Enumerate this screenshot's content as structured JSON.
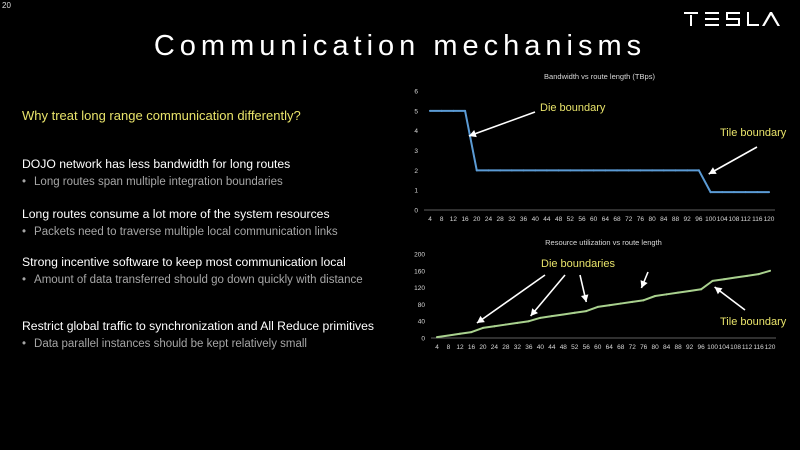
{
  "slide_number": "20",
  "brand": {
    "logo_text": "TESLA",
    "logo_icon": "tesla-wordmark-icon"
  },
  "title": "Communication mechanisms",
  "question": "Why treat long range communication differently?",
  "points": [
    {
      "heading": "DOJO network has less bandwidth for long routes",
      "sub": "Long routes span multiple integration boundaries"
    },
    {
      "heading": "Long routes consume a lot more of the system resources",
      "sub": "Packets need to traverse multiple local communication links"
    },
    {
      "heading": "Strong incentive software to keep most communication local",
      "sub": "Amount of data transferred should go down quickly with distance"
    },
    {
      "heading": "Restrict global traffic to synchronization and All Reduce primitives",
      "sub": "Data parallel instances should be kept relatively small"
    }
  ],
  "colors": {
    "bandwidth_line": "#5b9bd5",
    "utilization_line": "#a9d18e",
    "annotation_text": "#e8e36a",
    "axis": "#7f7f7f"
  },
  "chart_data": [
    {
      "type": "line",
      "title": "Bandwidth vs route length (TBps)",
      "x": [
        4,
        8,
        12,
        16,
        20,
        24,
        28,
        32,
        36,
        40,
        44,
        48,
        52,
        56,
        60,
        64,
        68,
        72,
        76,
        80,
        84,
        88,
        92,
        96,
        100,
        104,
        108,
        112,
        116,
        120
      ],
      "series": [
        {
          "values": [
            5,
            5,
            5,
            5,
            2,
            2,
            2,
            2,
            2,
            2,
            2,
            2,
            2,
            2,
            2,
            2,
            2,
            2,
            2,
            2,
            2,
            2,
            2,
            2,
            0.9,
            0.9,
            0.9,
            0.9,
            0.9,
            0.9
          ]
        }
      ],
      "ylim": [
        0,
        6
      ],
      "yticks": [
        0,
        1,
        2,
        3,
        4,
        5,
        6
      ],
      "xticks": [
        "4",
        "8",
        "12",
        "16",
        "20",
        "24",
        "28",
        "32",
        "36",
        "40",
        "44",
        "48",
        "52",
        "56",
        "60",
        "64",
        "68",
        "72",
        "76",
        "80",
        "84",
        "88",
        "92",
        "96",
        "100",
        "104",
        "108",
        "112",
        "116",
        "120"
      ],
      "grid": false,
      "annotations": [
        {
          "text": "Die boundary",
          "points_to_x": [
            18
          ]
        },
        {
          "text": "Tile boundary",
          "points_to_x": [
            98
          ]
        }
      ]
    },
    {
      "type": "line",
      "title": "Resource utilization vs route length",
      "x": [
        4,
        8,
        12,
        16,
        20,
        24,
        28,
        32,
        36,
        40,
        44,
        48,
        52,
        56,
        60,
        64,
        68,
        72,
        76,
        80,
        84,
        88,
        92,
        96,
        100,
        104,
        108,
        112,
        116,
        120
      ],
      "series": [
        {
          "values": [
            2,
            6,
            10,
            14,
            24,
            28,
            32,
            36,
            40,
            48,
            52,
            56,
            60,
            64,
            74,
            78,
            82,
            86,
            90,
            100,
            104,
            108,
            112,
            116,
            136,
            140,
            144,
            148,
            152,
            160
          ]
        }
      ],
      "ylim": [
        0,
        200
      ],
      "yticks": [
        0,
        40,
        80,
        120,
        160,
        200
      ],
      "xticks": [
        "4",
        "8",
        "12",
        "16",
        "20",
        "24",
        "28",
        "32",
        "36",
        "40",
        "44",
        "48",
        "52",
        "56",
        "60",
        "64",
        "68",
        "72",
        "76",
        "80",
        "84",
        "88",
        "92",
        "96",
        "100",
        "104",
        "108",
        "112",
        "116",
        "120"
      ],
      "grid": false,
      "annotations": [
        {
          "text": "Die boundaries",
          "points_to_x": [
            20,
            38,
            56,
            78
          ]
        },
        {
          "text": "Tile boundary",
          "points_to_x": [
            100
          ]
        }
      ]
    }
  ]
}
